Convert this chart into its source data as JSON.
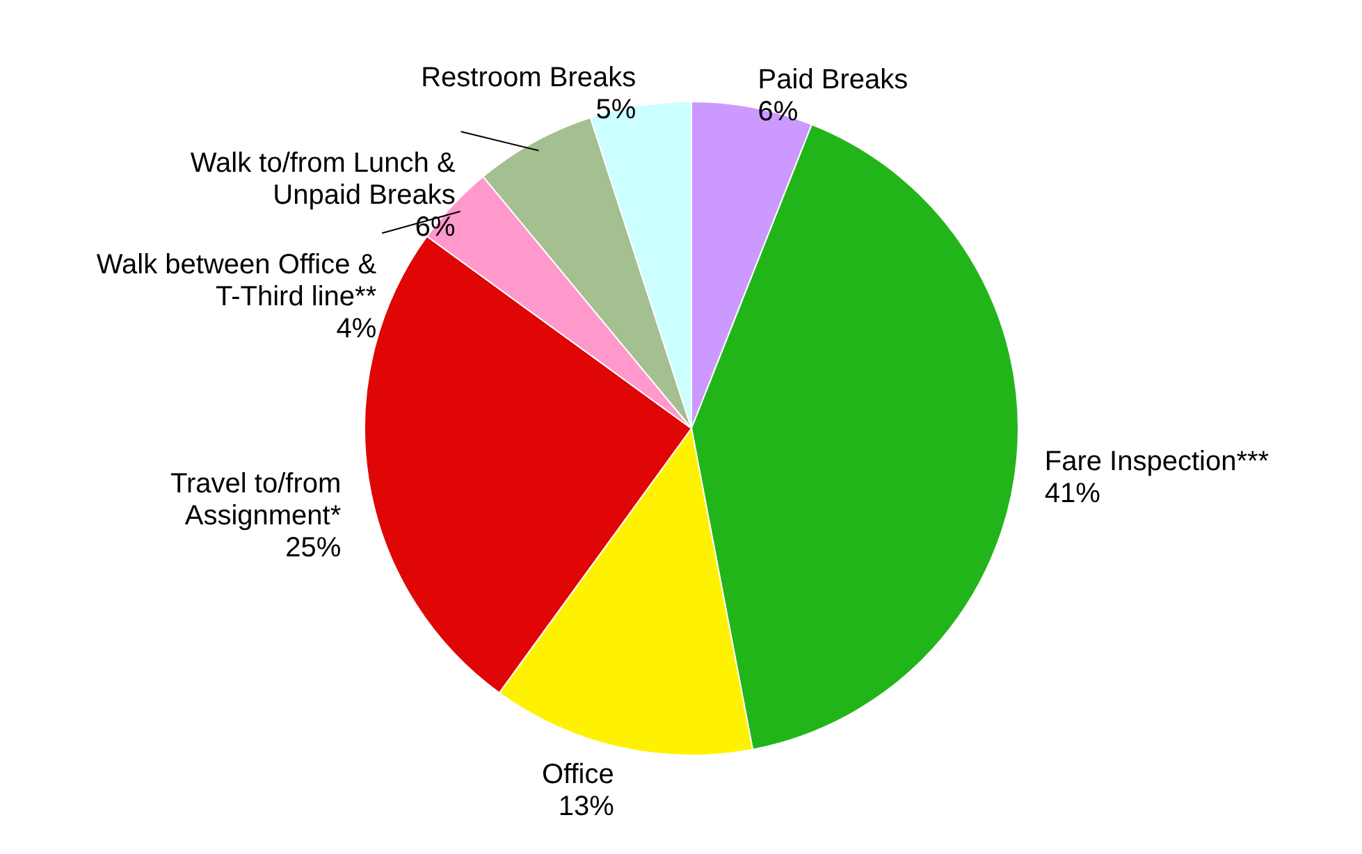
{
  "chart_data": {
    "type": "pie",
    "categories": [
      "Paid Breaks",
      "Fare Inspection***",
      "Office",
      "Travel to/from Assignment*",
      "Walk between Office & T-Third line**",
      "Walk to/from Lunch & Unpaid Breaks",
      "Restroom Breaks"
    ],
    "values": [
      6,
      41,
      13,
      25,
      4,
      6,
      5
    ],
    "value_labels": [
      "6%",
      "41%",
      "13%",
      "25%",
      "4%",
      "6%",
      "5%"
    ],
    "colors": [
      "#cc99ff",
      "#22b51a",
      "#fff200",
      "#e00606",
      "#ff99cc",
      "#a4bf90",
      "#ccffff"
    ]
  }
}
